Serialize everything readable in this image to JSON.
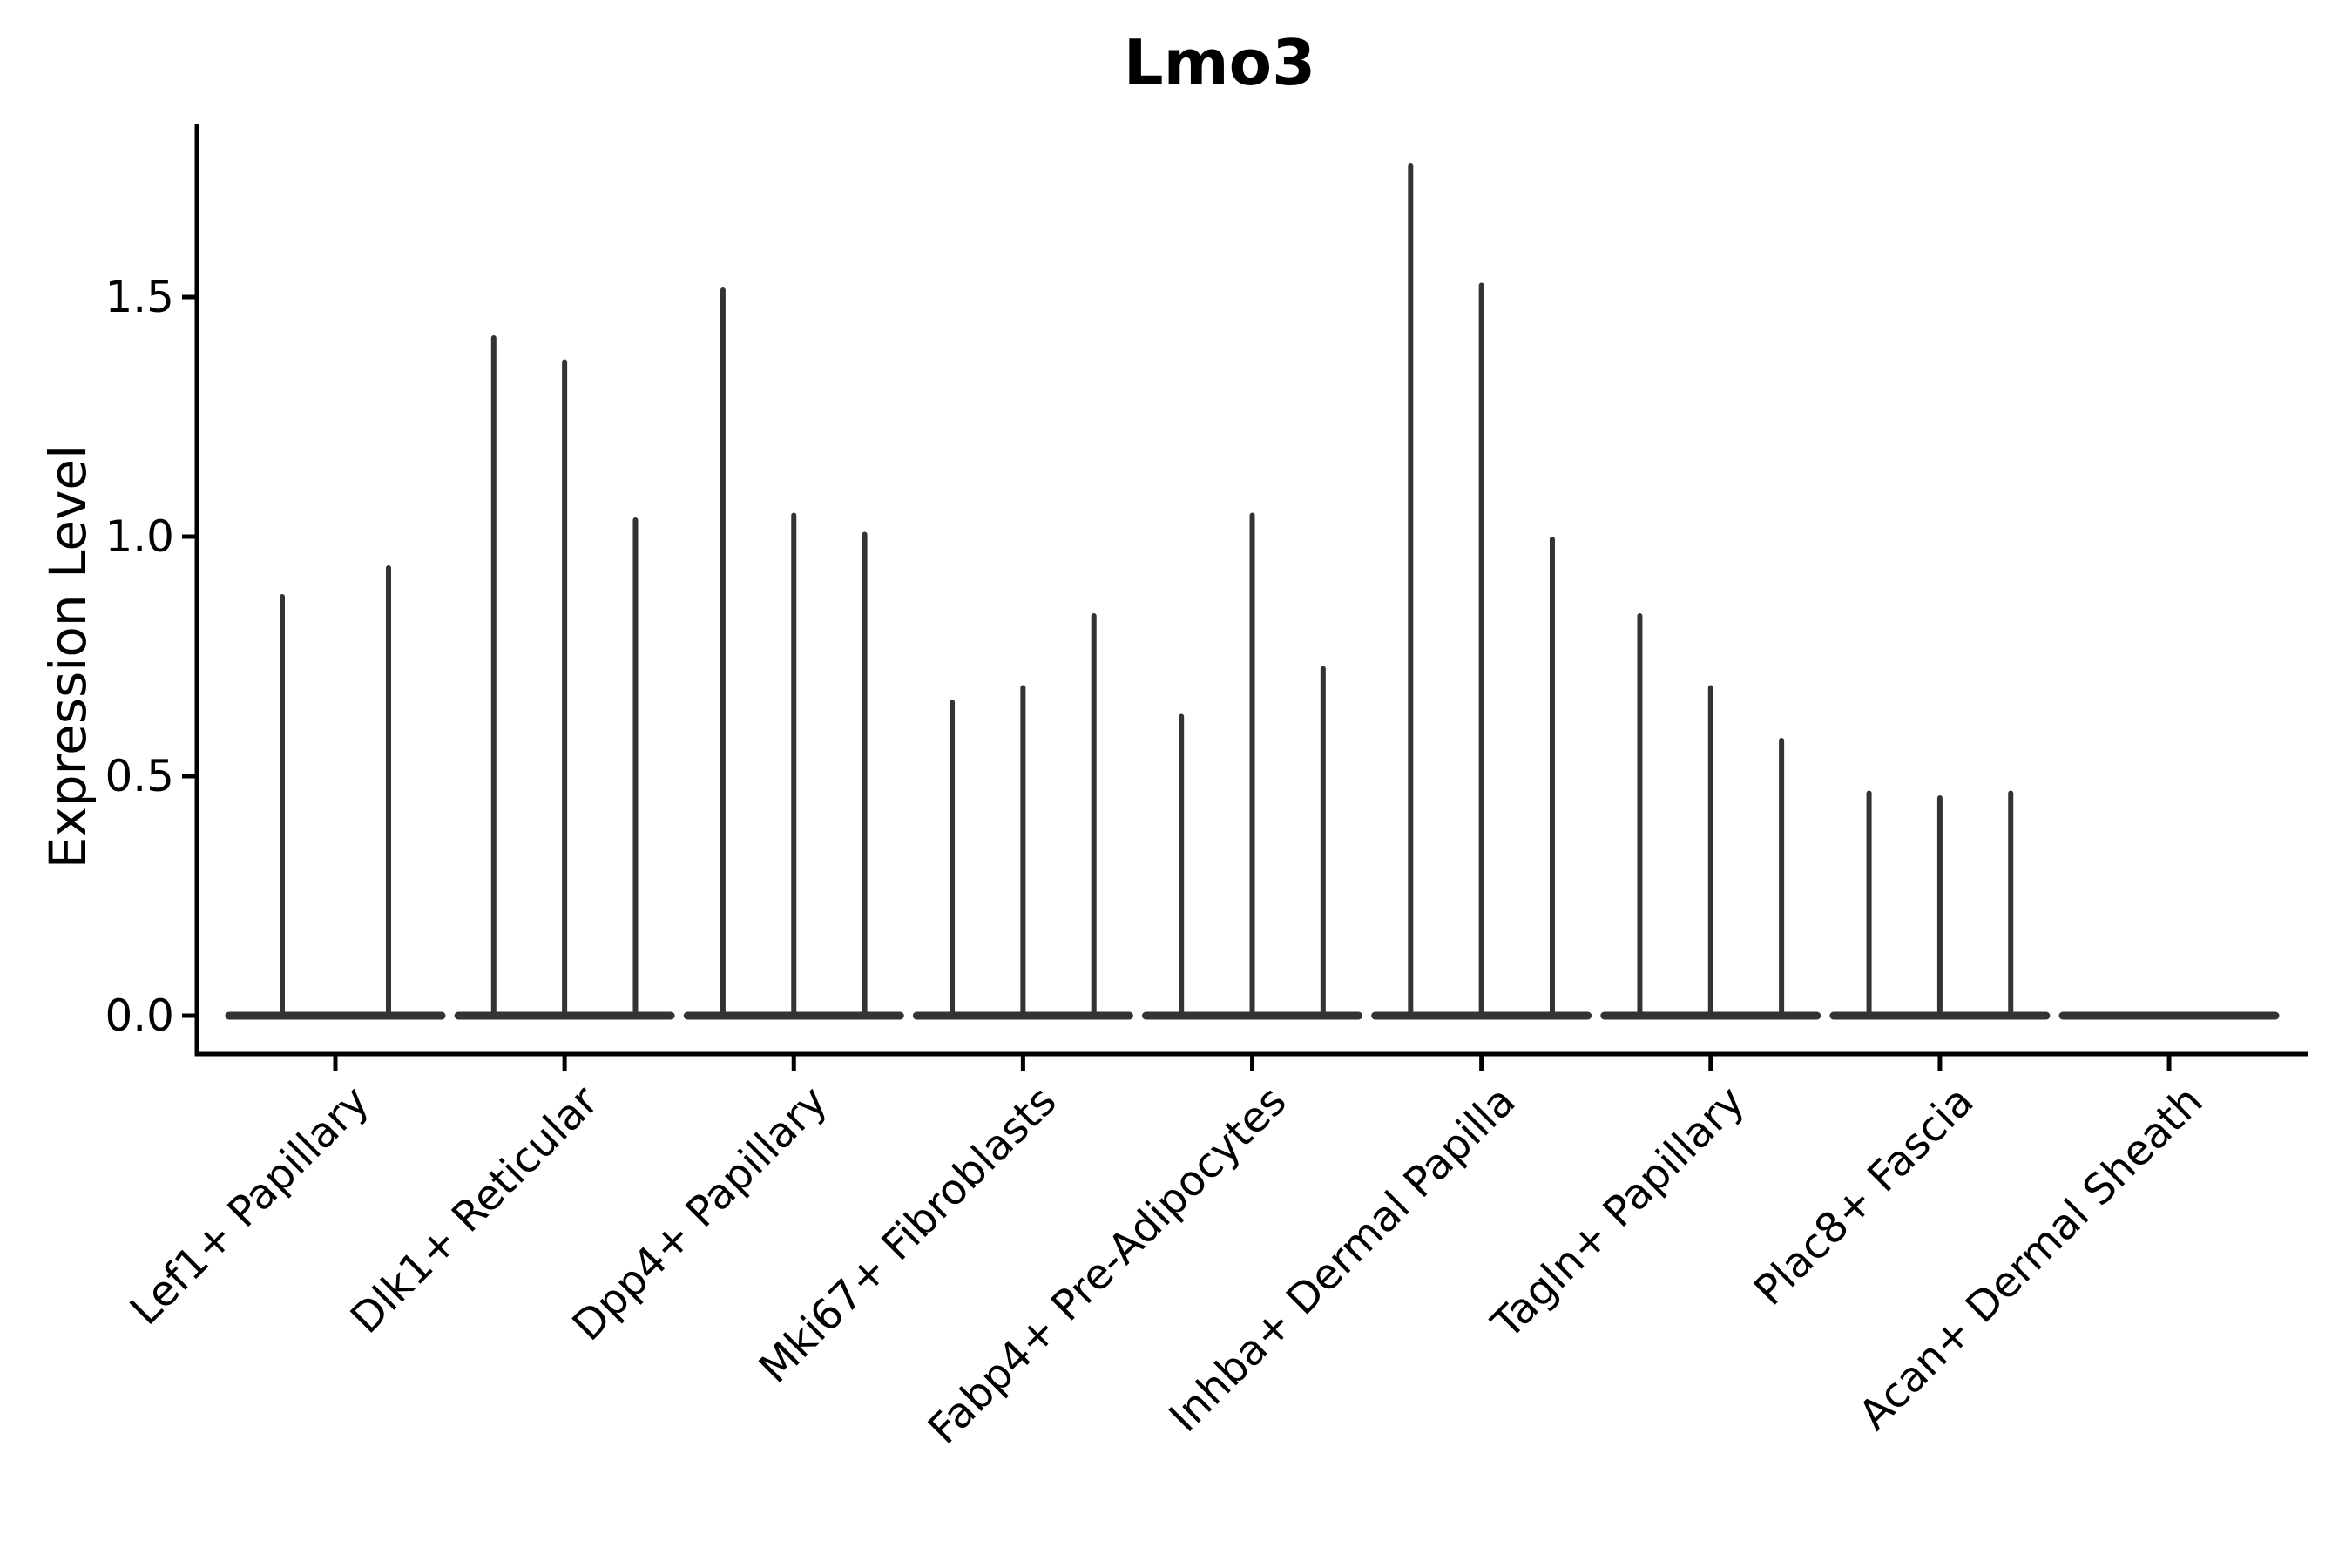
{
  "chart_data": {
    "type": "violin",
    "title": "Lmo3",
    "xlabel": "",
    "ylabel": "Expression Level",
    "ylim": [
      0,
      1.86
    ],
    "yticks": [
      0.0,
      0.5,
      1.0,
      1.5
    ],
    "ytick_labels": [
      "0.0",
      "0.5",
      "1.0",
      "1.5"
    ],
    "grid": false,
    "legend": null,
    "axis_color": "#000000",
    "violin_color": "#333333",
    "categories": [
      "Lef1+ Papillary",
      "Dlk1+ Reticular",
      "Dpp4+ Papillary",
      "Mki67+ Fibroblasts",
      "Fabp4+ Pre-Adipocytes",
      "Inhba+ Dermal Papilla",
      "Tagln+ Papillary",
      "Plac8+ Fascia",
      "Acan+ Dermal Sheath"
    ],
    "groups": [
      {
        "category": "Lef1+ Papillary",
        "violin_max_values": [
          0.88,
          0.94
        ]
      },
      {
        "category": "Dlk1+ Reticular",
        "violin_max_values": [
          1.42,
          1.37,
          1.04
        ]
      },
      {
        "category": "Dpp4+ Papillary",
        "violin_max_values": [
          1.52,
          1.05,
          1.01
        ]
      },
      {
        "category": "Mki67+ Fibroblasts",
        "violin_max_values": [
          0.66,
          0.69,
          0.84
        ]
      },
      {
        "category": "Fabp4+ Pre-Adipocytes",
        "violin_max_values": [
          0.63,
          1.05,
          0.73
        ]
      },
      {
        "category": "Inhba+ Dermal Papilla",
        "violin_max_values": [
          1.78,
          1.53,
          1.0
        ]
      },
      {
        "category": "Tagln+ Papillary",
        "violin_max_values": [
          0.84,
          0.69,
          0.58
        ]
      },
      {
        "category": "Plac8+ Fascia",
        "violin_max_values": [
          0.47,
          0.46,
          0.47
        ]
      },
      {
        "category": "Acan+ Dermal Sheath",
        "violin_max_values": [
          0,
          0,
          0
        ]
      }
    ]
  }
}
